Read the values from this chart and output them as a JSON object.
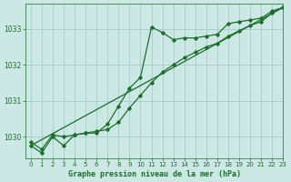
{
  "bg_color": "#cce8e4",
  "grid_color": "#a8ccc8",
  "line_color": "#1a6e2a",
  "title": "Graphe pression niveau de la mer (hPa)",
  "xlim": [
    -0.5,
    23
  ],
  "ylim": [
    1029.4,
    1033.7
  ],
  "yticks": [
    1030,
    1031,
    1032,
    1033
  ],
  "xticks": [
    0,
    1,
    2,
    3,
    4,
    5,
    6,
    7,
    8,
    9,
    10,
    11,
    12,
    13,
    14,
    15,
    16,
    17,
    18,
    19,
    20,
    21,
    22,
    23
  ],
  "series_straight": {
    "x": [
      0,
      23
    ],
    "y": [
      1029.75,
      1033.6
    ]
  },
  "series_marker1": {
    "x": [
      0,
      1,
      2,
      3,
      4,
      5,
      6,
      7,
      8,
      9,
      10,
      11,
      12,
      13,
      14,
      15,
      16,
      17,
      18,
      19,
      20,
      21,
      22,
      23
    ],
    "y": [
      1029.85,
      1029.65,
      1030.05,
      1030.0,
      1030.05,
      1030.1,
      1030.15,
      1030.2,
      1030.4,
      1030.8,
      1031.15,
      1031.5,
      1031.8,
      1032.0,
      1032.2,
      1032.35,
      1032.5,
      1032.6,
      1032.8,
      1032.95,
      1033.1,
      1033.2,
      1033.45,
      1033.6
    ]
  },
  "series_marker2": {
    "x": [
      0,
      1,
      2,
      3,
      4,
      5,
      6,
      7,
      8,
      9,
      10,
      11,
      12,
      13,
      14,
      15,
      16,
      17,
      18,
      19,
      20,
      21,
      22,
      23
    ],
    "y": [
      1029.75,
      1029.55,
      1030.0,
      1029.75,
      1030.05,
      1030.1,
      1030.1,
      1030.35,
      1030.85,
      1031.35,
      1031.65,
      1033.05,
      1032.9,
      1032.7,
      1032.75,
      1032.75,
      1032.8,
      1032.85,
      1033.15,
      1033.2,
      1033.25,
      1033.3,
      1033.5,
      1033.6
    ]
  }
}
